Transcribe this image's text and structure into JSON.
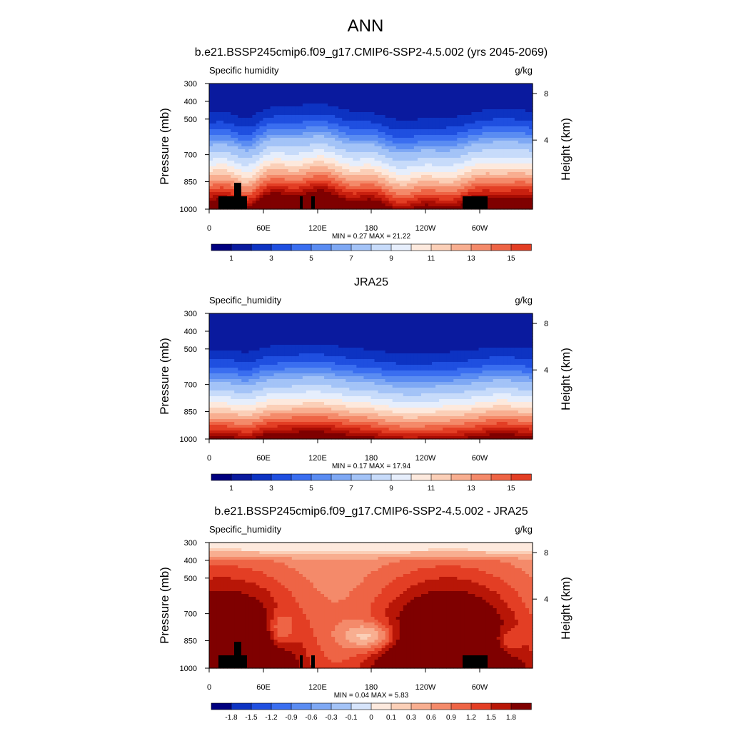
{
  "figure": {
    "title": "ANN"
  },
  "chart_data": [
    {
      "type": "heatmap",
      "title": "b.e21.BSSP245cmip6.f09_g17.CMIP6-SSP2-4.5.002 (yrs 2045-2069)",
      "variable_label": "Specific humidity",
      "units": "g/kg",
      "ylabel": "Pressure (mb)",
      "ylabel_right": "Height (km)",
      "x_ticks": [
        "0",
        "60E",
        "120E",
        "180",
        "120W",
        "60W"
      ],
      "x_range": [
        0,
        355
      ],
      "y_ticks": [
        "300",
        "400",
        "500",
        "700",
        "850",
        "1000"
      ],
      "y_range": [
        1000,
        300
      ],
      "y_right_ticks": [
        "8",
        "4"
      ],
      "min": "0.27",
      "max": "21.22",
      "stats_text": "MIN =   0.27  MAX =  21.22",
      "colorbar_ticks": [
        "1",
        "3",
        "5",
        "7",
        "9",
        "11",
        "13",
        "15"
      ],
      "colorbar_levels": [
        0.5,
        1,
        1.5,
        2,
        2.5,
        3,
        4,
        5,
        6,
        7,
        8,
        9,
        10,
        11,
        12,
        13,
        14,
        15
      ],
      "field": "model"
    },
    {
      "type": "heatmap",
      "title": "JRA25",
      "variable_label": "Specific_humidity",
      "units": "g/kg",
      "ylabel": "Pressure (mb)",
      "ylabel_right": "Height (km)",
      "x_ticks": [
        "0",
        "60E",
        "120E",
        "180",
        "120W",
        "60W"
      ],
      "x_range": [
        0,
        355
      ],
      "y_ticks": [
        "300",
        "400",
        "500",
        "700",
        "850",
        "1000"
      ],
      "y_range": [
        1000,
        300
      ],
      "y_right_ticks": [
        "8",
        "4"
      ],
      "min": "0.17",
      "max": "17.94",
      "stats_text": "MIN =   0.17  MAX =  17.94",
      "colorbar_ticks": [
        "1",
        "3",
        "5",
        "7",
        "9",
        "11",
        "13",
        "15"
      ],
      "colorbar_levels": [
        0.5,
        1,
        1.5,
        2,
        2.5,
        3,
        4,
        5,
        6,
        7,
        8,
        9,
        10,
        11,
        12,
        13,
        14,
        15
      ],
      "field": "obs"
    },
    {
      "type": "heatmap",
      "title": "b.e21.BSSP245cmip6.f09_g17.CMIP6-SSP2-4.5.002 - JRA25",
      "variable_label": "Specific_humidity",
      "units": "g/kg",
      "ylabel": "Pressure (mb)",
      "ylabel_right": "Height (km)",
      "x_ticks": [
        "0",
        "60E",
        "120E",
        "180",
        "120W",
        "60W"
      ],
      "x_range": [
        0,
        355
      ],
      "y_ticks": [
        "300",
        "400",
        "500",
        "700",
        "850",
        "1000"
      ],
      "y_range": [
        1000,
        300
      ],
      "y_right_ticks": [
        "8",
        "4"
      ],
      "min": "0.04",
      "max": "5.83",
      "stats_text": "MIN =   0.04  MAX =   5.83",
      "colorbar_ticks": [
        "-1.8",
        "-1.5",
        "-1.2",
        "-0.9",
        "-0.6",
        "-0.3",
        "-0.1",
        "0",
        "0.1",
        "0.3",
        "0.6",
        "0.9",
        "1.2",
        "1.5",
        "1.8"
      ],
      "colorbar_levels": [
        -1.8,
        -1.5,
        -1.2,
        -0.9,
        -0.6,
        -0.3,
        -0.1,
        0,
        0.1,
        0.3,
        0.6,
        0.9,
        1.2,
        1.5,
        1.8
      ],
      "field": "diff"
    }
  ],
  "palette": {
    "colors": [
      "#00007f",
      "#0a1a9e",
      "#0d33c2",
      "#1f4fe0",
      "#3a6ef0",
      "#5a8cf2",
      "#7ea8f4",
      "#a3c3f7",
      "#c7dbfa",
      "#e6eefc",
      "#fde9dd",
      "#fbcfb7",
      "#f8ae90",
      "#f48a6a",
      "#ee6445",
      "#e33e24",
      "#c9200f",
      "#a80c03",
      "#7f0000"
    ],
    "diff_colors": [
      "#00007f",
      "#0d33c2",
      "#1f4fe0",
      "#3a6ef0",
      "#5a8cf2",
      "#7ea8f4",
      "#a3c3f7",
      "#d6e4fb",
      "#fde9dd",
      "#fbcfb7",
      "#f8ae90",
      "#f48a6a",
      "#ee6445",
      "#e33e24",
      "#b81607",
      "#7f0000"
    ],
    "terrain": "#000000"
  }
}
